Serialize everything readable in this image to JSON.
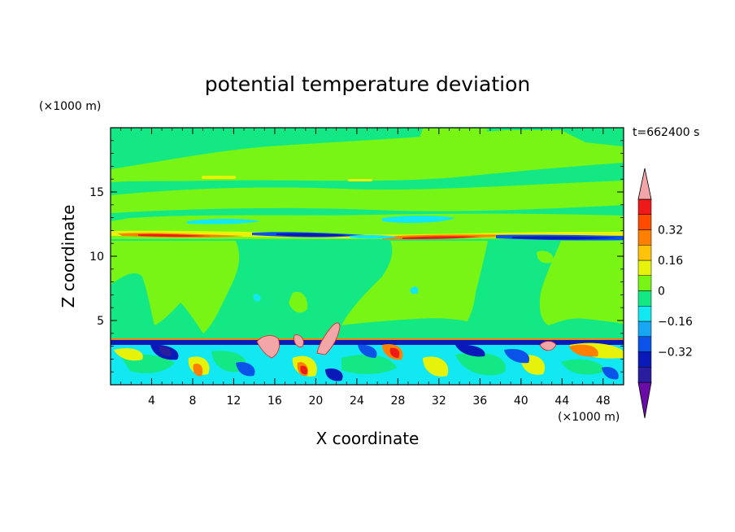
{
  "chart_data": {
    "type": "heatmap",
    "title": "potential temperature deviation",
    "xlabel": "X coordinate",
    "ylabel": "Z coordinate",
    "x_unit": "(×1000 m)",
    "y_unit": "(×1000 m)",
    "time_label": "t=662400 s",
    "xlim": [
      0,
      50
    ],
    "ylim": [
      0,
      20
    ],
    "x_ticks": [
      4,
      8,
      12,
      16,
      20,
      24,
      28,
      32,
      36,
      40,
      44,
      48
    ],
    "y_ticks": [
      5,
      10,
      15
    ],
    "colorbar": {
      "levels": [
        -0.48,
        -0.4,
        -0.32,
        -0.24,
        -0.16,
        -0.08,
        0,
        0.08,
        0.16,
        0.24,
        0.32,
        0.4,
        0.48
      ],
      "tick_values": [
        0.32,
        0.16,
        0,
        -0.16,
        -0.32
      ],
      "tick_labels": [
        "0.32",
        "0.16",
        "0",
        "−0.16",
        "−0.32"
      ],
      "colors": [
        "#6a0ca8",
        "#2a1d9e",
        "#0a1ab8",
        "#0a52e8",
        "#17a7f2",
        "#12e8f2",
        "#14e885",
        "#78f514",
        "#e6f20a",
        "#ffc40a",
        "#ff8000",
        "#ff4a00",
        "#ee1a1a",
        "#f3a6a8"
      ]
    },
    "fields": {
      "background_band": "0 to 0.08",
      "layers": [
        {
          "name": "upper weak positive bands",
          "z_range": [
            13,
            19.5
          ],
          "value_range": [
            0.08,
            0.16
          ]
        },
        {
          "name": "tropopause inversion strip",
          "z_range": [
            11.2,
            12.2
          ],
          "value_range": [
            -0.4,
            0.4
          ]
        },
        {
          "name": "mid troposphere plumes",
          "z_range": [
            3.5,
            11
          ],
          "value_range": [
            0.08,
            0.16
          ]
        },
        {
          "name": "boundary layer convection",
          "z_range": [
            0,
            3.8
          ],
          "value_range": [
            -0.48,
            0.48
          ]
        }
      ]
    }
  }
}
